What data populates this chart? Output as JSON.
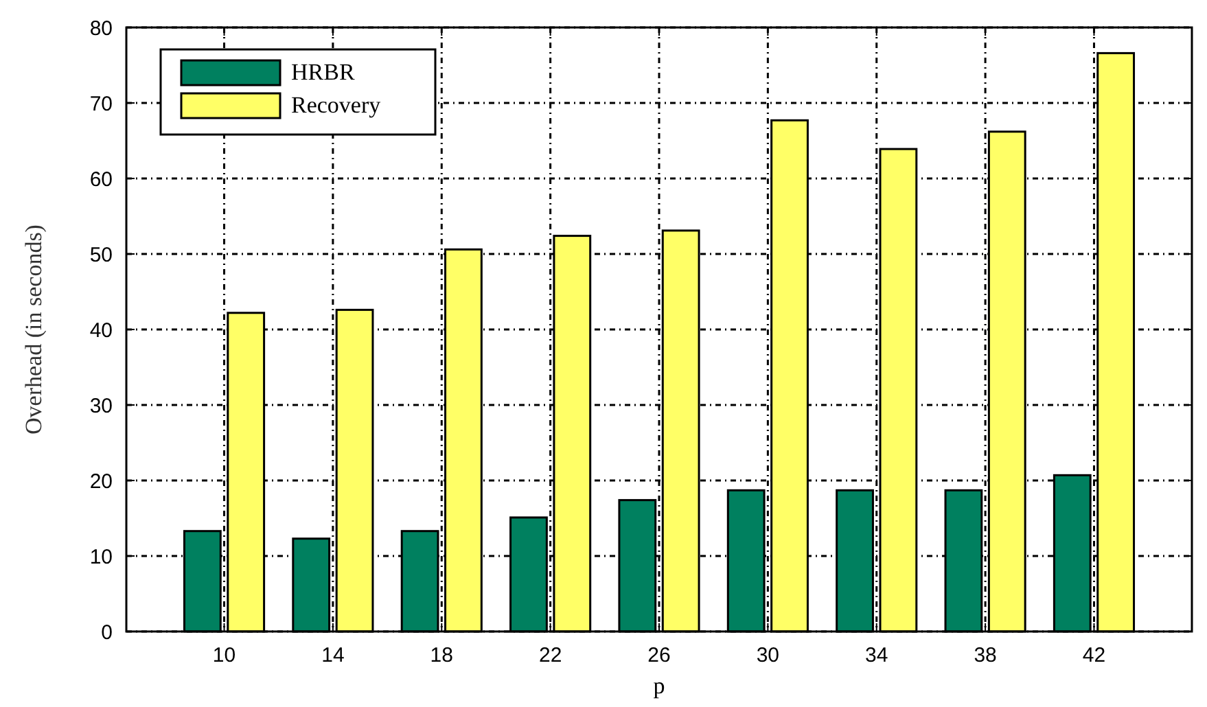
{
  "chart_data": {
    "type": "bar",
    "xlabel": "p",
    "ylabel": "Overhead (in seconds)",
    "categories": [
      "10",
      "14",
      "18",
      "22",
      "26",
      "30",
      "34",
      "38",
      "42"
    ],
    "series": [
      {
        "name": "HRBR",
        "color": "#00805f",
        "values": [
          13.3,
          12.3,
          13.3,
          15.1,
          17.4,
          18.7,
          18.7,
          18.7,
          20.7
        ]
      },
      {
        "name": "Recovery",
        "color": "#ffff66",
        "values": [
          42.2,
          42.6,
          50.6,
          52.4,
          53.1,
          67.7,
          63.9,
          66.2,
          76.6
        ]
      }
    ],
    "ylim": [
      0,
      80
    ],
    "yticks": [
      0,
      10,
      20,
      30,
      40,
      50,
      60,
      70,
      80
    ],
    "grid": true,
    "legend": "top left"
  }
}
